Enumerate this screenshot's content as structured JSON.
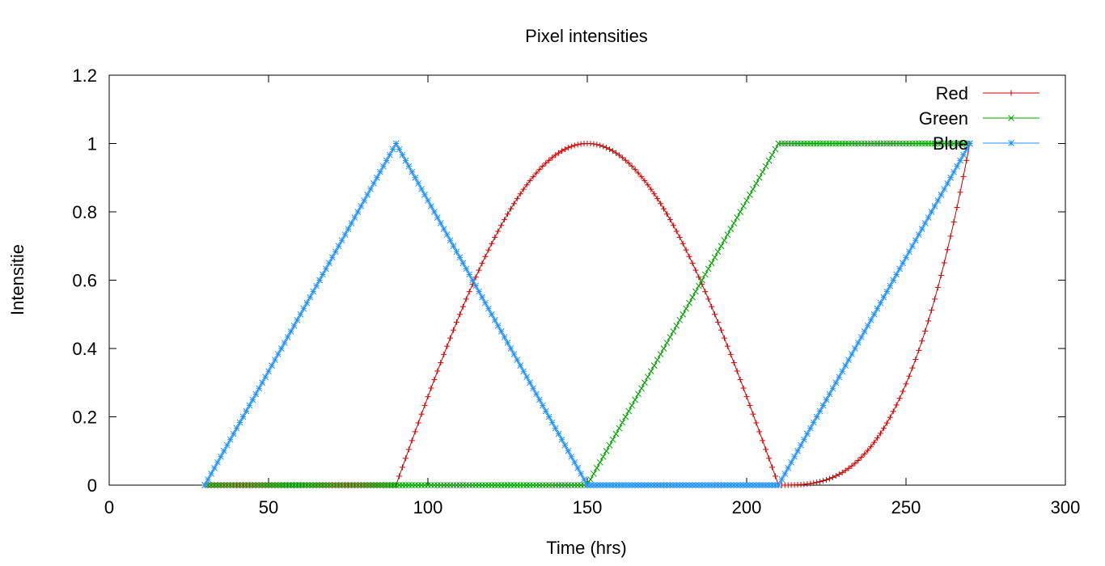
{
  "chart_data": {
    "type": "line",
    "title": "Pixel intensities",
    "xlabel": "Time (hrs)",
    "ylabel": "Intensitie",
    "xlim": [
      0,
      300
    ],
    "ylim": [
      0,
      1.2
    ],
    "x_ticks": [
      0,
      50,
      100,
      150,
      200,
      250,
      300
    ],
    "x_tick_labels": [
      "0",
      "50",
      "100",
      "150",
      "200",
      "250",
      "300"
    ],
    "y_ticks": [
      0,
      0.2,
      0.4,
      0.6,
      0.8,
      1,
      1.2
    ],
    "y_tick_labels": [
      "0",
      "0.2",
      "0.4",
      "0.6",
      "0.8",
      "1",
      "1.2"
    ],
    "grid": false,
    "legend_position": "top-right",
    "marker_step": 1,
    "series": [
      {
        "name": "Red",
        "color": "#cc0000",
        "marker": "plus",
        "segments": [
          {
            "x_from": 30,
            "x_to": 90,
            "shape": "constant",
            "y": 0
          },
          {
            "x_from": 90,
            "x_to": 210,
            "shape": "sine_arch",
            "y_peak": 1
          },
          {
            "x_from": 210,
            "x_to": 270,
            "shape": "cubic_rise",
            "y_from": 0,
            "y_to": 1
          }
        ]
      },
      {
        "name": "Green",
        "color": "#00a000",
        "marker": "cross",
        "segments": [
          {
            "x_from": 30,
            "x_to": 150,
            "shape": "constant",
            "y": 0
          },
          {
            "x_from": 150,
            "x_to": 210,
            "shape": "linear",
            "y_from": 0,
            "y_to": 1
          },
          {
            "x_from": 210,
            "x_to": 270,
            "shape": "constant",
            "y": 1
          }
        ]
      },
      {
        "name": "Blue",
        "color": "#1e90ff",
        "marker": "star",
        "segments": [
          {
            "x_from": 30,
            "x_to": 90,
            "shape": "linear",
            "y_from": 0,
            "y_to": 1
          },
          {
            "x_from": 90,
            "x_to": 150,
            "shape": "linear",
            "y_from": 1,
            "y_to": 0
          },
          {
            "x_from": 150,
            "x_to": 210,
            "shape": "constant",
            "y": 0
          },
          {
            "x_from": 210,
            "x_to": 270,
            "shape": "linear",
            "y_from": 0,
            "y_to": 1
          }
        ]
      }
    ]
  }
}
